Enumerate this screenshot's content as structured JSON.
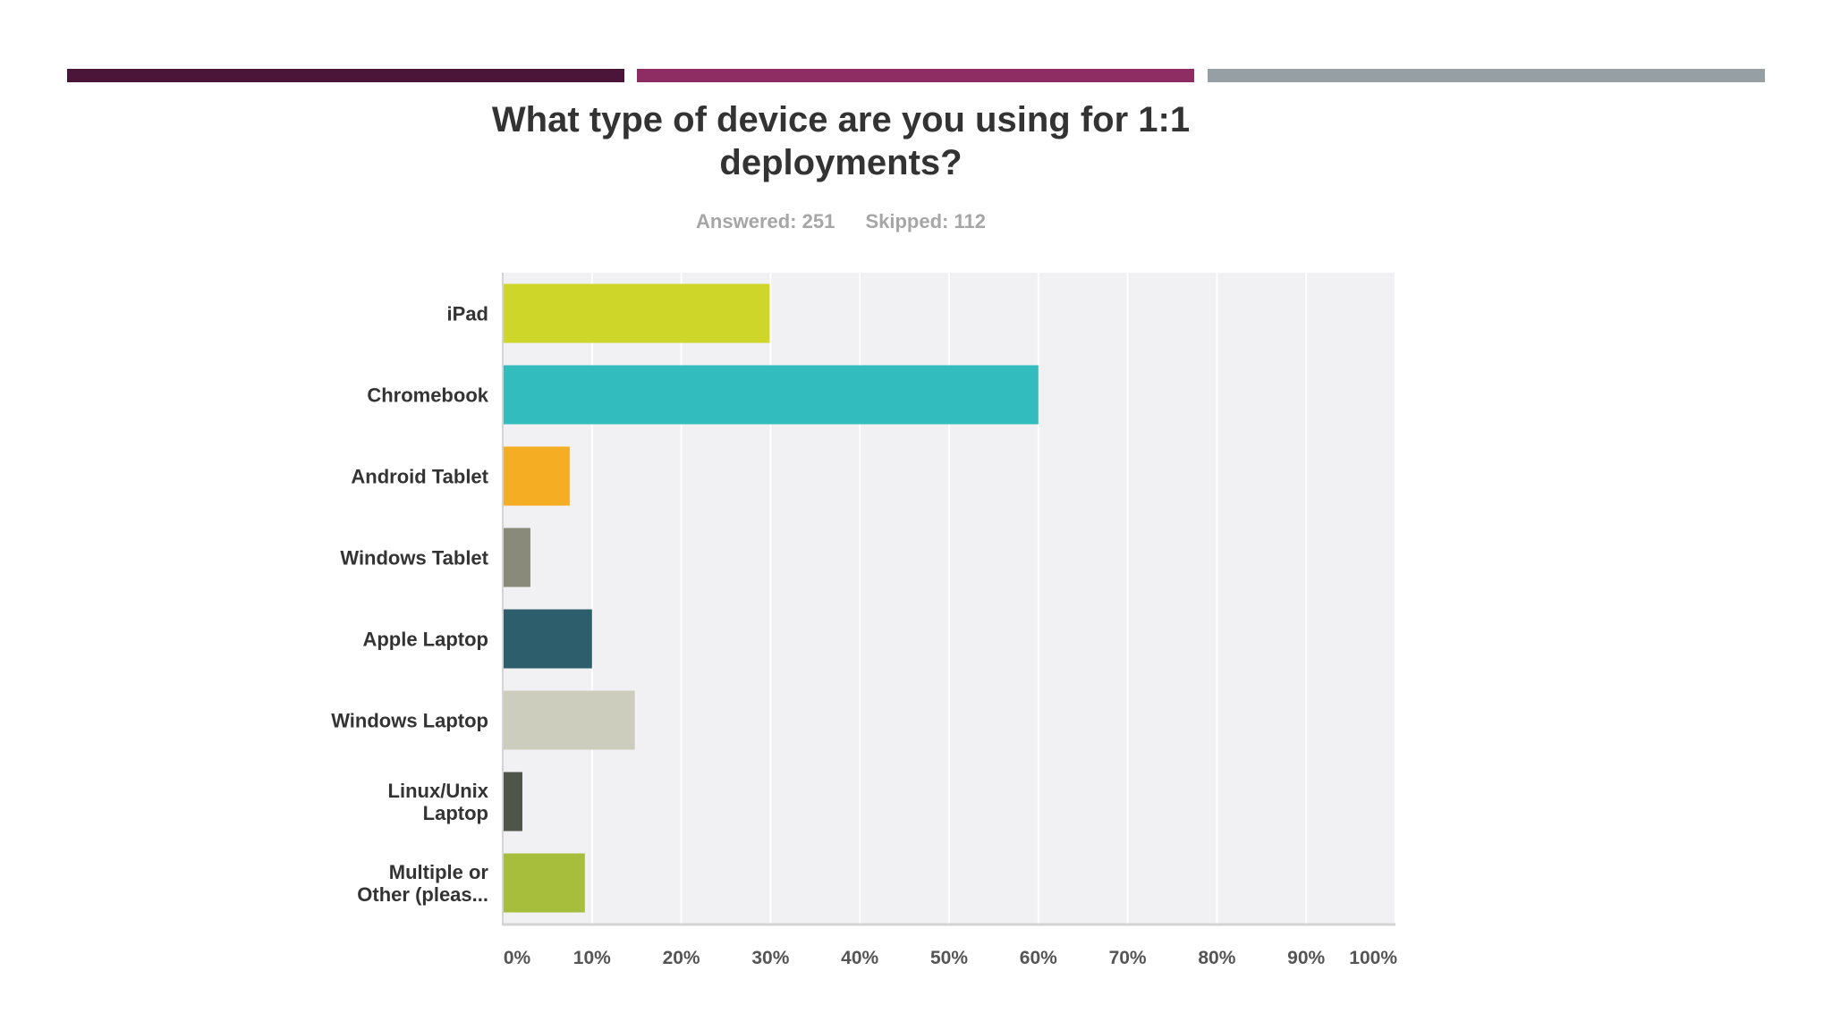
{
  "colors": {
    "accent_bars": [
      "#4a1538",
      "#8e2d63",
      "#969fa3"
    ],
    "plot_background": "#f1f0f2",
    "gridline": "#ffffff",
    "axis": "#d4d4d4",
    "label_text": "#333333",
    "tick_text": "#555555",
    "stats_text": "#a6a6a6"
  },
  "chart_data": {
    "type": "bar",
    "orientation": "horizontal",
    "title": "What type of device are you using for 1:1 deployments?",
    "title_lines": [
      "What type of device are you using for 1:1",
      "deployments?"
    ],
    "answered_label": "Answered: 251",
    "skipped_label": "Skipped: 112",
    "categories": [
      [
        "iPad"
      ],
      [
        "Chromebook"
      ],
      [
        "Android Tablet"
      ],
      [
        "Windows Tablet"
      ],
      [
        "Apple Laptop"
      ],
      [
        "Windows Laptop"
      ],
      [
        "Linux/Unix",
        "Laptop"
      ],
      [
        "Multiple or",
        "Other (pleas..."
      ]
    ],
    "values": [
      29.9,
      60.0,
      7.5,
      3.1,
      10.0,
      14.8,
      2.2,
      9.2
    ],
    "bar_colors": [
      "#cdd629",
      "#33bcbe",
      "#f5ad23",
      "#8a8a7a",
      "#2c5f6b",
      "#cdcdbd",
      "#4f5548",
      "#a6be3c"
    ],
    "xlim": [
      0,
      100
    ],
    "x_ticks": [
      0,
      10,
      20,
      30,
      40,
      50,
      60,
      70,
      80,
      90,
      100
    ],
    "x_tick_labels": [
      "0%",
      "10%",
      "20%",
      "30%",
      "40%",
      "50%",
      "60%",
      "70%",
      "80%",
      "90%",
      "100%"
    ],
    "grid": true,
    "legend": "none"
  }
}
